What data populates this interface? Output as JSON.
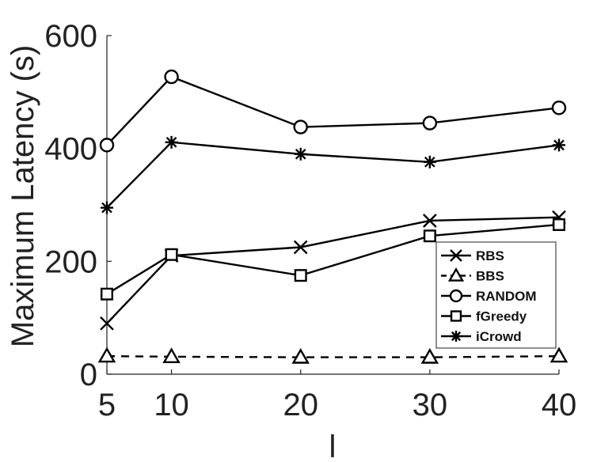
{
  "chart_data": {
    "type": "line",
    "title": "",
    "xlabel": "l",
    "ylabel": "Maximum Latency (s)",
    "x": [
      5,
      10,
      20,
      30,
      40
    ],
    "x_tick_labels": [
      "5",
      "10",
      "20",
      "30",
      "40"
    ],
    "y_ticks": [
      0,
      200,
      400,
      600
    ],
    "y_tick_labels": [
      "0",
      "200",
      "400",
      "600"
    ],
    "ylim": [
      0,
      600
    ],
    "grid": false,
    "legend_position": "inside-lower-right",
    "series": [
      {
        "name": "RBS",
        "marker": "x",
        "dash": "solid",
        "values": [
          90,
          210,
          225,
          272,
          278
        ]
      },
      {
        "name": "BBS",
        "marker": "triangle",
        "dash": "dashed",
        "values": [
          32,
          31,
          30,
          30,
          32
        ]
      },
      {
        "name": "RANDOM",
        "marker": "circle",
        "dash": "solid",
        "values": [
          406,
          527,
          438,
          445,
          472
        ]
      },
      {
        "name": "fGreedy",
        "marker": "square",
        "dash": "solid",
        "values": [
          142,
          212,
          175,
          245,
          265
        ]
      },
      {
        "name": "iCrowd",
        "marker": "asterisk",
        "dash": "solid",
        "values": [
          295,
          411,
          390,
          376,
          406
        ]
      }
    ],
    "line_color": "#000000"
  }
}
